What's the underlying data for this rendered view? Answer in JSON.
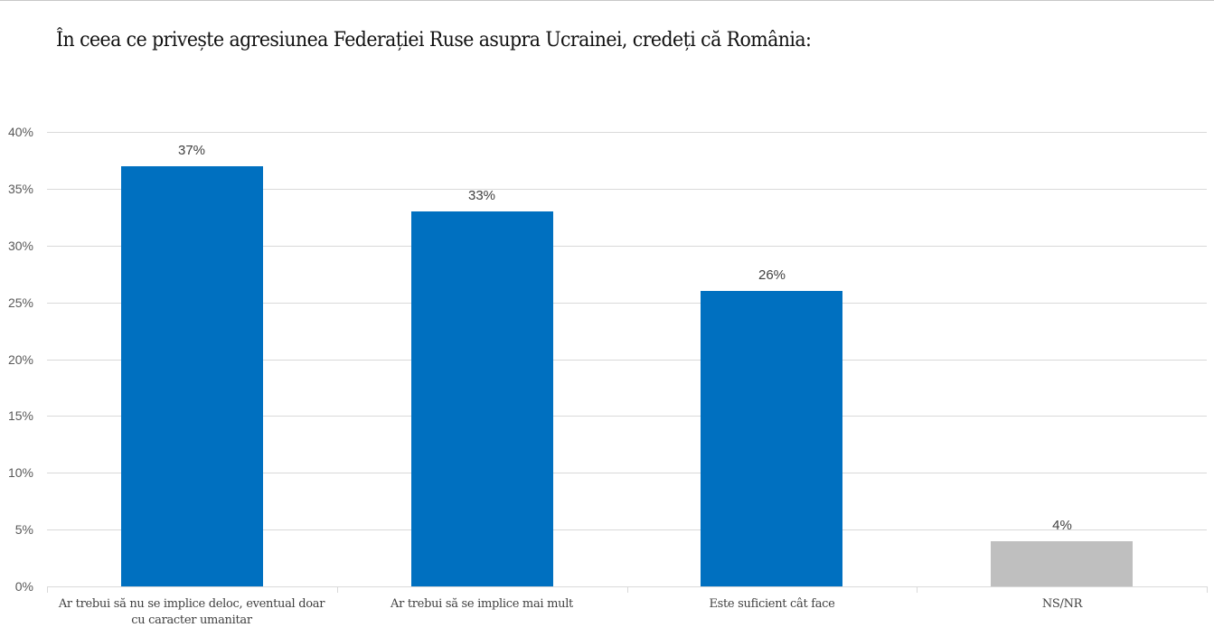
{
  "chart_data": {
    "type": "bar",
    "title": "În ceea ce privește agresiunea Federației Ruse asupra Ucrainei, credeți că România:",
    "categories": [
      "Ar trebui să nu se implice deloc, eventual doar cu caracter umanitar",
      "Ar trebui să se implice mai mult",
      "Este suficient cât face",
      "NS/NR"
    ],
    "category_lines": [
      [
        "Ar trebui să nu se implice deloc, eventual doar",
        "cu caracter umanitar"
      ],
      [
        "Ar trebui să se implice mai mult"
      ],
      [
        "Este suficient cât face"
      ],
      [
        "NS/NR"
      ]
    ],
    "values": [
      37,
      33,
      26,
      4
    ],
    "data_labels": [
      "37%",
      "33%",
      "26%",
      "4%"
    ],
    "bar_colors": [
      "#0070c0",
      "#0070c0",
      "#0070c0",
      "#bfbfbf"
    ],
    "xlabel": "",
    "ylabel": "",
    "ylim": [
      0,
      40
    ],
    "yticks": [
      "0%",
      "5%",
      "10%",
      "15%",
      "20%",
      "25%",
      "30%",
      "35%",
      "40%"
    ],
    "grid": true,
    "legend": null
  }
}
